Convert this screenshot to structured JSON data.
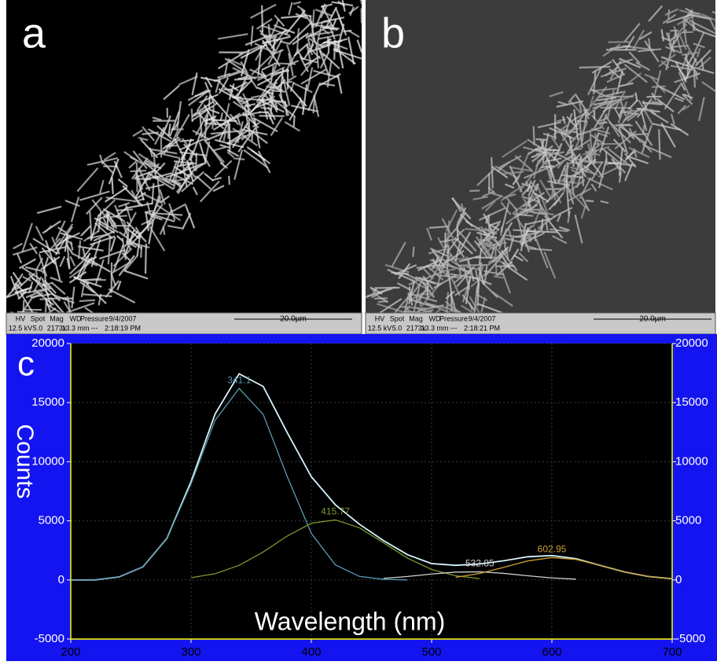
{
  "panels": [
    {
      "label": "a",
      "info_headers": [
        "HV",
        "Spot",
        "Mag",
        "WD",
        "Pressure",
        "9/4/2007"
      ],
      "info_values": [
        "12.5 kV",
        "5.0",
        "2173x",
        "13.3 mm",
        "---",
        "2:18:19 PM"
      ],
      "scale": "20.0µm"
    },
    {
      "label": "b",
      "info_headers": [
        "HV",
        "Spot",
        "Mag",
        "WD",
        "Pressure",
        "9/4/2007"
      ],
      "info_values": [
        "12.5 kV",
        "5.0",
        "2173x",
        "13.3 mm",
        "---",
        "2:18:21 PM"
      ],
      "scale": "20.0µm"
    }
  ],
  "chart_data": {
    "type": "line",
    "panel_label": "c",
    "xlabel": "Wavelength (nm)",
    "ylabel": "Counts",
    "xlim": [
      200,
      700
    ],
    "xticks": [
      200,
      300,
      400,
      500,
      600,
      700
    ],
    "ylim": [
      -5000,
      20000
    ],
    "yticks": [
      -5000,
      0,
      5000,
      10000,
      15000,
      20000
    ],
    "y2lim": [
      -5000,
      20000
    ],
    "y2ticks": [
      -5000,
      0,
      5000,
      10000,
      15000,
      20000
    ],
    "grid": true,
    "series": [
      {
        "color": "#d8f4ff",
        "x": [
          200,
          220,
          240,
          260,
          280,
          300,
          320,
          340,
          360,
          380,
          400,
          420,
          440,
          460,
          480,
          500,
          520,
          540,
          560,
          580,
          600,
          620,
          640,
          660,
          680,
          700
        ],
        "values": [
          0,
          0,
          251,
          1107,
          3528,
          8322,
          14037,
          17436,
          16369,
          12458,
          8730,
          6355,
          4711,
          3330,
          2134,
          1384,
          1237,
          1354,
          1624,
          1962,
          2066,
          1800,
          1237,
          684,
          296,
          101
        ]
      },
      {
        "name": "341.1",
        "color": "#5a9cb4",
        "x": [
          200,
          220,
          240,
          260,
          280,
          300,
          320,
          340,
          360,
          380,
          400,
          420,
          440,
          460,
          480
        ],
        "values": [
          0,
          0,
          251,
          1107,
          3528,
          8135,
          13508,
          16200,
          14003,
          8740,
          3931,
          1277,
          299,
          50,
          0
        ]
      },
      {
        "name": "415.77",
        "color": "#7c9a2c",
        "x": [
          300,
          320,
          340,
          360,
          380,
          400,
          420,
          440,
          460,
          480,
          500,
          520,
          540
        ],
        "values": [
          187,
          529,
          1236,
          2366,
          3718,
          4799,
          5078,
          4412,
          3146,
          1842,
          884,
          350,
          113
        ]
      },
      {
        "name": "532.85",
        "color": "#d0d0d0",
        "x": [
          460,
          480,
          500,
          520,
          540,
          560,
          580,
          600,
          620
        ],
        "values": [
          134,
          292,
          500,
          665,
          689,
          556,
          351,
          171,
          65
        ]
      },
      {
        "name": "602.95",
        "color": "#c8a030",
        "x": [
          520,
          540,
          560,
          580,
          600,
          620,
          640,
          660,
          680,
          700
        ],
        "values": [
          222,
          552,
          1068,
          1611,
          1895,
          1735,
          1237,
          684,
          296,
          101
        ]
      }
    ]
  }
}
